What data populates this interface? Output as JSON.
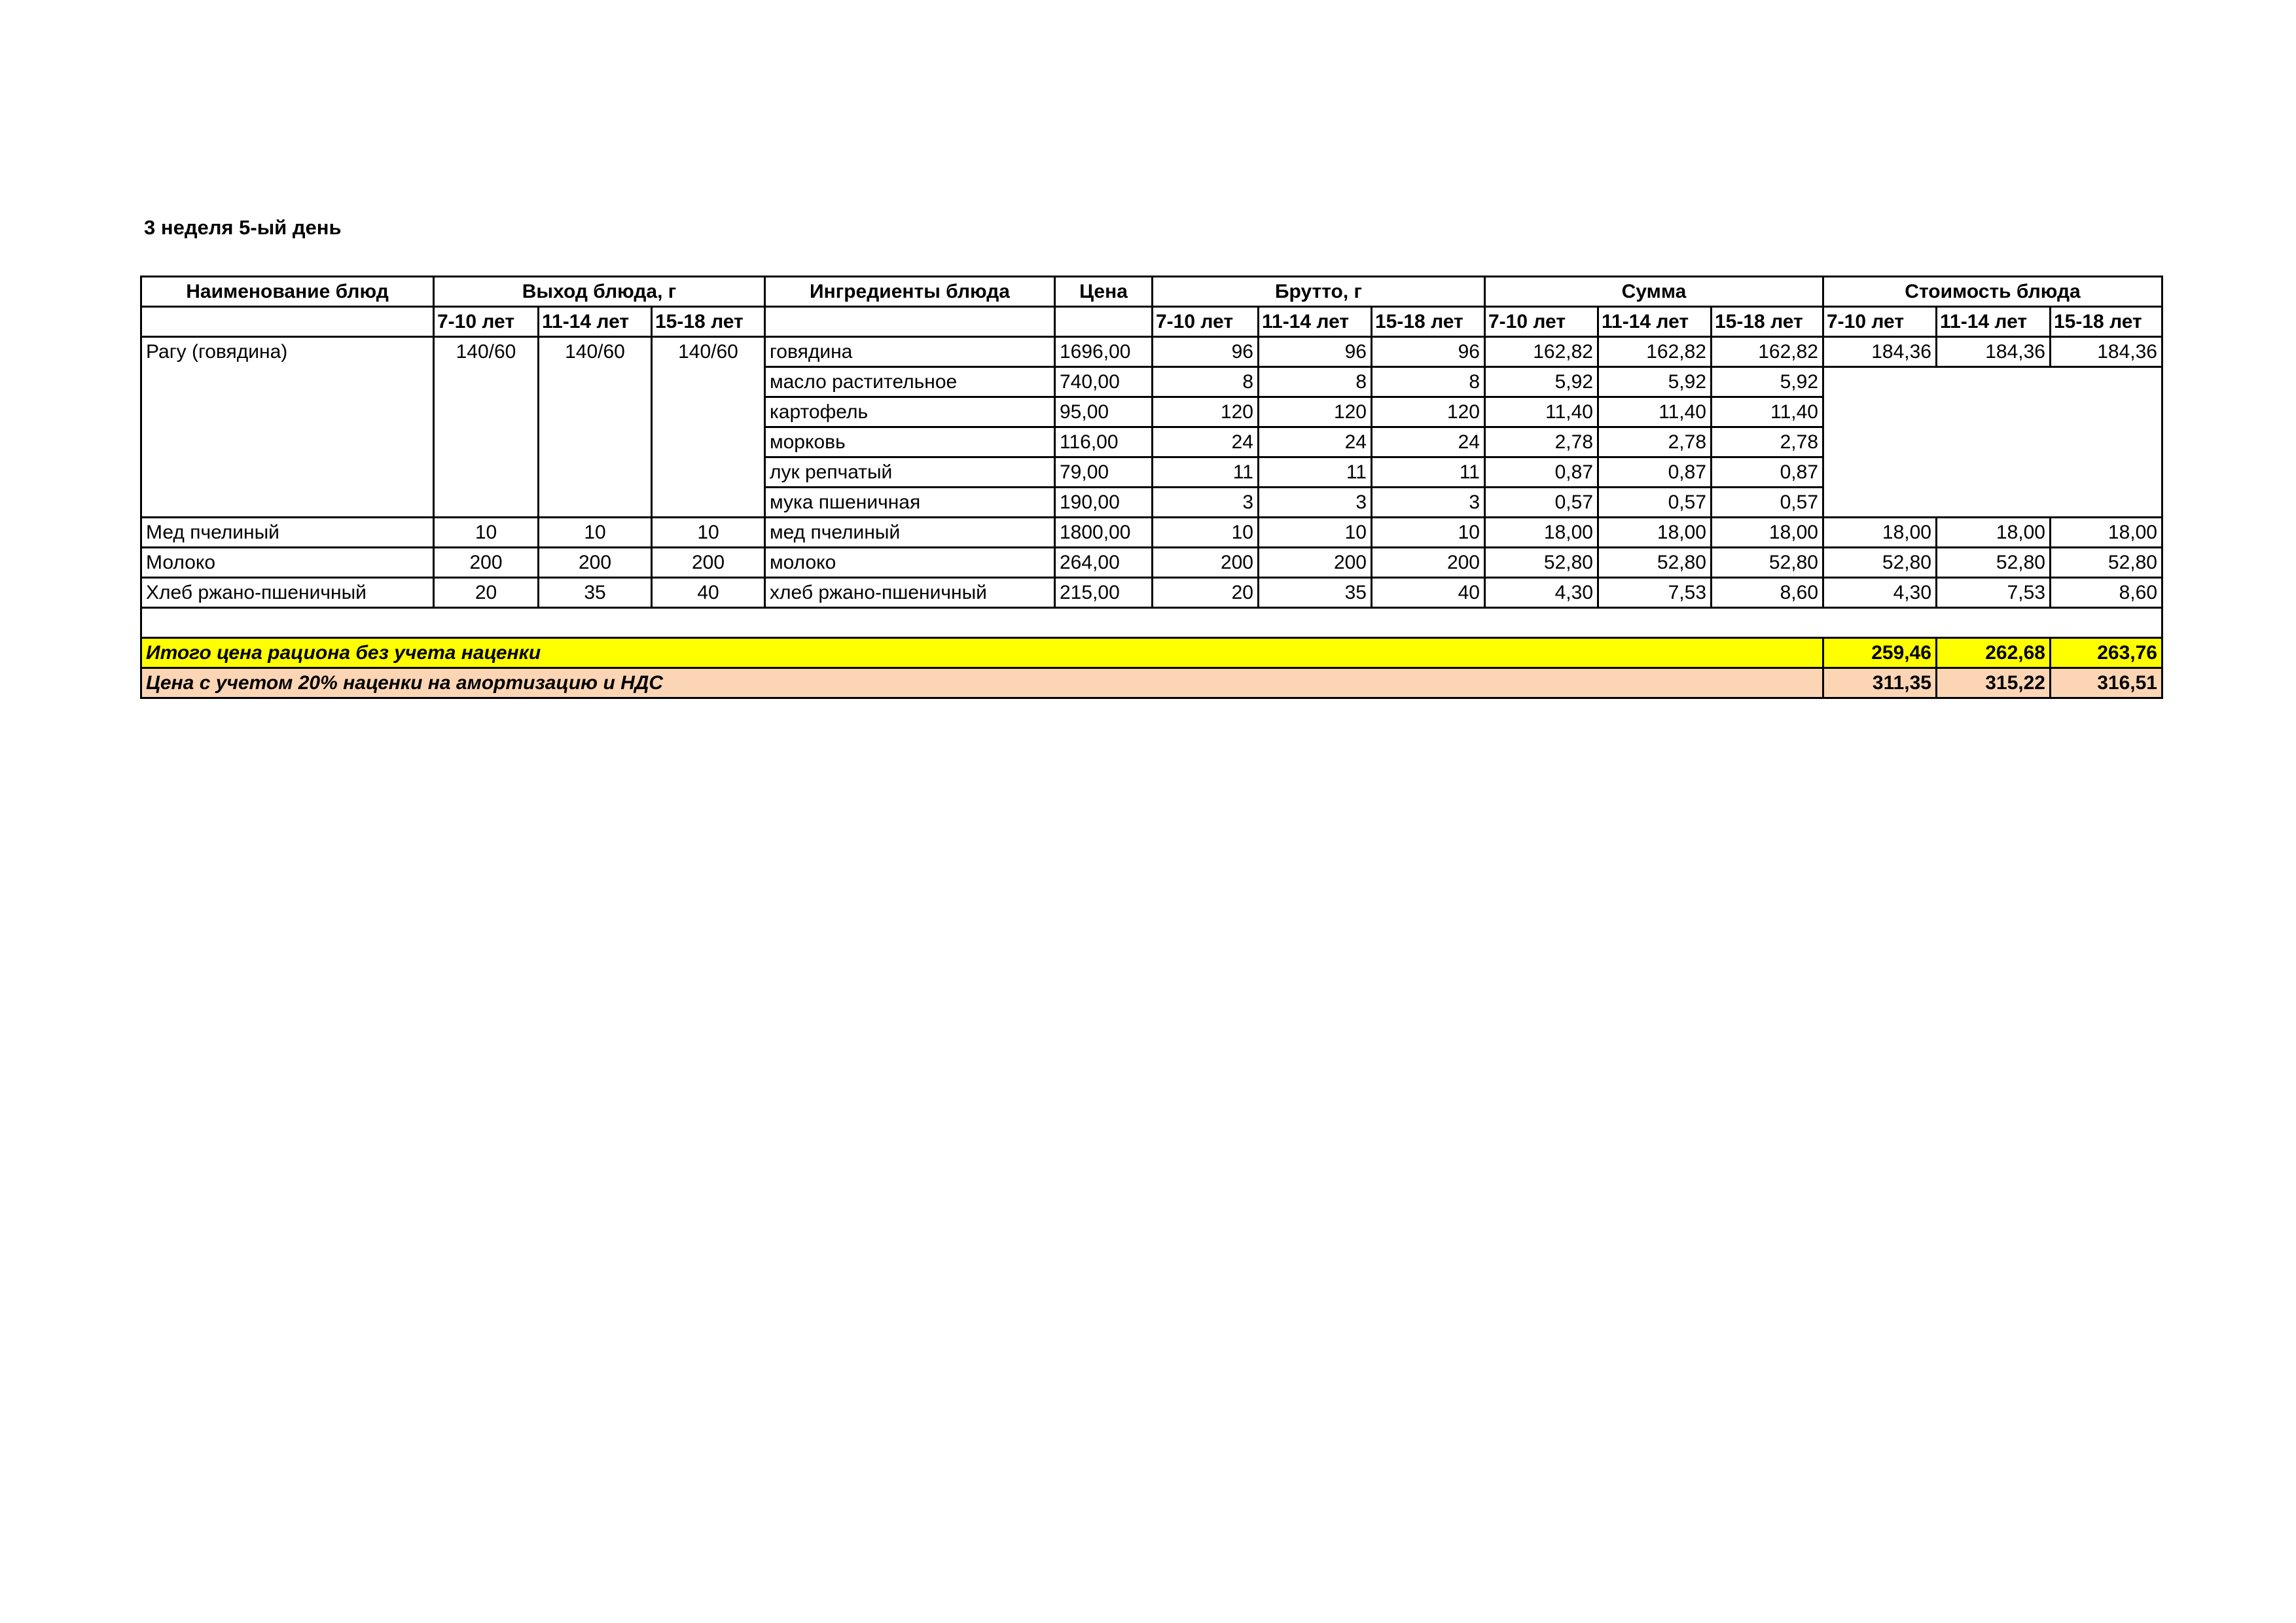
{
  "title": "3 неделя 5-ый день",
  "headers": {
    "dish_name": "Наименование блюд",
    "yield": "Выход блюда, г",
    "ingredients": "Ингредиенты блюда",
    "price": "Цена",
    "gross": "Брутто, г",
    "sum": "Сумма",
    "dish_cost": "Стоимость блюда",
    "age_groups": [
      "7-10 лет",
      "11-14 лет",
      "15-18 лет"
    ]
  },
  "dishes": [
    {
      "name": "Рагу (говядина)",
      "yield": [
        "140/60",
        "140/60",
        "140/60"
      ],
      "cost": [
        "184,36",
        "184,36",
        "184,36"
      ],
      "ingredients": [
        {
          "name": "говядина",
          "price": "1696,00",
          "gross": [
            "96",
            "96",
            "96"
          ],
          "sum": [
            "162,82",
            "162,82",
            "162,82"
          ]
        },
        {
          "name": "масло растительное",
          "price": "740,00",
          "gross": [
            "8",
            "8",
            "8"
          ],
          "sum": [
            "5,92",
            "5,92",
            "5,92"
          ]
        },
        {
          "name": "картофель",
          "price": "95,00",
          "gross": [
            "120",
            "120",
            "120"
          ],
          "sum": [
            "11,40",
            "11,40",
            "11,40"
          ]
        },
        {
          "name": "морковь",
          "price": "116,00",
          "gross": [
            "24",
            "24",
            "24"
          ],
          "sum": [
            "2,78",
            "2,78",
            "2,78"
          ]
        },
        {
          "name": "лук репчатый",
          "price": "79,00",
          "gross": [
            "11",
            "11",
            "11"
          ],
          "sum": [
            "0,87",
            "0,87",
            "0,87"
          ]
        },
        {
          "name": "мука пшеничная",
          "price": "190,00",
          "gross": [
            "3",
            "3",
            "3"
          ],
          "sum": [
            "0,57",
            "0,57",
            "0,57"
          ]
        }
      ]
    },
    {
      "name": "Мед пчелиный",
      "yield": [
        "10",
        "10",
        "10"
      ],
      "cost": [
        "18,00",
        "18,00",
        "18,00"
      ],
      "ingredients": [
        {
          "name": "мед пчелиный",
          "price": "1800,00",
          "gross": [
            "10",
            "10",
            "10"
          ],
          "sum": [
            "18,00",
            "18,00",
            "18,00"
          ]
        }
      ]
    },
    {
      "name": "Молоко",
      "yield": [
        "200",
        "200",
        "200"
      ],
      "cost": [
        "52,80",
        "52,80",
        "52,80"
      ],
      "ingredients": [
        {
          "name": "молоко",
          "price": "264,00",
          "gross": [
            "200",
            "200",
            "200"
          ],
          "sum": [
            "52,80",
            "52,80",
            "52,80"
          ]
        }
      ]
    },
    {
      "name": "Хлеб ржано-пшеничный",
      "yield": [
        "20",
        "35",
        "40"
      ],
      "cost": [
        "4,30",
        "7,53",
        "8,60"
      ],
      "ingredients": [
        {
          "name": "хлеб ржано-пшеничный",
          "price": "215,00",
          "gross": [
            "20",
            "35",
            "40"
          ],
          "sum": [
            "4,30",
            "7,53",
            "8,60"
          ]
        }
      ]
    }
  ],
  "totals": {
    "without_markup": {
      "label": "Итого цена рациона без учета наценки",
      "values": [
        "259,46",
        "262,68",
        "263,76"
      ],
      "color": "#ffff00"
    },
    "with_markup": {
      "label": "Цена с учетом 20% наценки на амортизацию и НДС",
      "values": [
        "311,35",
        "315,22",
        "316,51"
      ],
      "color": "#fcd5b4"
    }
  }
}
